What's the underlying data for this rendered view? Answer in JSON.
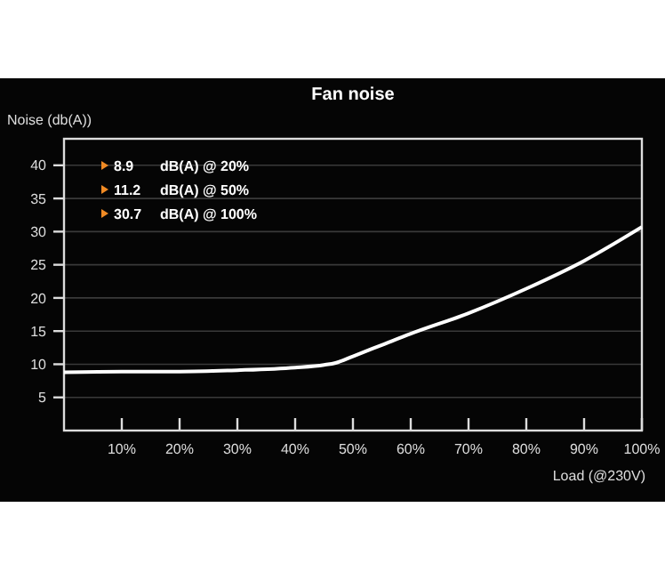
{
  "chart_data": {
    "type": "line",
    "title": "Fan noise",
    "xlabel": "Load (@230V)",
    "ylabel": "Noise (db(A))",
    "annotations": [
      "8.9 dB(A) @ 20%",
      "11.2 dB(A) @ 50%",
      "30.7 dB(A) @ 100%"
    ],
    "x": [
      0,
      10,
      20,
      30,
      40,
      45,
      47,
      50,
      55,
      60,
      70,
      80,
      90,
      100
    ],
    "series": [
      {
        "color": "#ffffff",
        "values": [
          8.8,
          8.9,
          8.9,
          9.1,
          9.5,
          9.9,
          10.2,
          11.2,
          12.9,
          14.6,
          17.7,
          21.4,
          25.6,
          30.7
        ]
      }
    ],
    "xlim": [
      0,
      100
    ],
    "ylim": [
      0,
      44
    ],
    "xticks": [
      {
        "value": 10,
        "label": "10%"
      },
      {
        "value": 20,
        "label": "20%"
      },
      {
        "value": 30,
        "label": "30%"
      },
      {
        "value": 40,
        "label": "40%"
      },
      {
        "value": 50,
        "label": "50%"
      },
      {
        "value": 60,
        "label": "60%"
      },
      {
        "value": 70,
        "label": "70%"
      },
      {
        "value": 80,
        "label": "80%"
      },
      {
        "value": 90,
        "label": "90%"
      },
      {
        "value": 100,
        "label": "100%"
      }
    ],
    "yticks": [
      5,
      10,
      15,
      20,
      25,
      30,
      35,
      40
    ],
    "grid": "y",
    "marker": "none",
    "line_style": "solid"
  }
}
